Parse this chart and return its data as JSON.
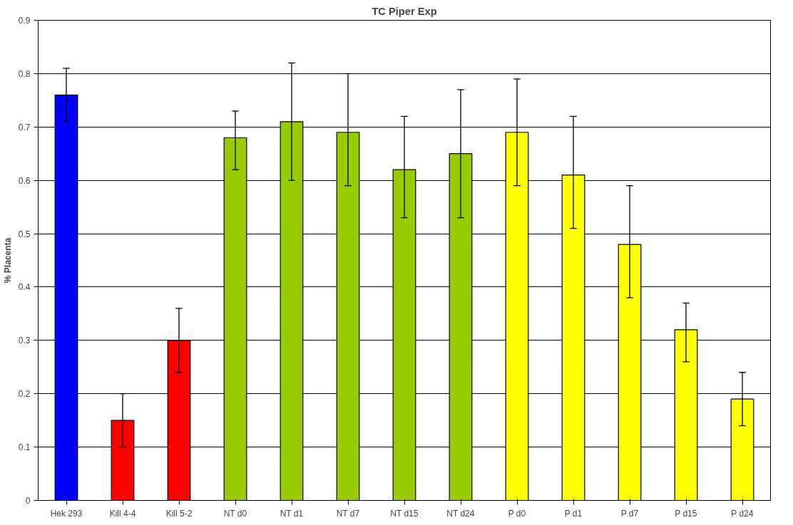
{
  "chart_data": {
    "type": "bar",
    "title": "TC Piper Exp",
    "ylabel": "% Placenta",
    "categories": [
      "Hek 293",
      "Kill 4-4",
      "Kill 5-2",
      "NT d0",
      "NT d1",
      "NT d7",
      "NT d15",
      "NT d24",
      "P d0",
      "P d1",
      "P d7",
      "P d15",
      "P d24"
    ],
    "values": [
      0.76,
      0.15,
      0.3,
      0.68,
      0.71,
      0.69,
      0.62,
      0.65,
      0.69,
      0.61,
      0.48,
      0.32,
      0.19
    ],
    "errors": [
      [
        0.71,
        0.81
      ],
      [
        0.1,
        0.2
      ],
      [
        0.24,
        0.36
      ],
      [
        0.62,
        0.73
      ],
      [
        0.6,
        0.82
      ],
      [
        0.59,
        0.8
      ],
      [
        0.53,
        0.72
      ],
      [
        0.53,
        0.77
      ],
      [
        0.59,
        0.79
      ],
      [
        0.51,
        0.72
      ],
      [
        0.38,
        0.59
      ],
      [
        0.26,
        0.37
      ],
      [
        0.14,
        0.24
      ]
    ],
    "colors": [
      "#0000ff",
      "#ff0000",
      "#ff0000",
      "#99cc00",
      "#99cc00",
      "#99cc00",
      "#99cc00",
      "#99cc00",
      "#ffff00",
      "#ffff00",
      "#ffff00",
      "#ffff00",
      "#ffff00"
    ],
    "ylim": [
      0,
      0.9
    ],
    "yticks": [
      0,
      0.1,
      0.2,
      0.3,
      0.4,
      0.5,
      0.6,
      0.7,
      0.8,
      0.9
    ],
    "grid": "y"
  }
}
